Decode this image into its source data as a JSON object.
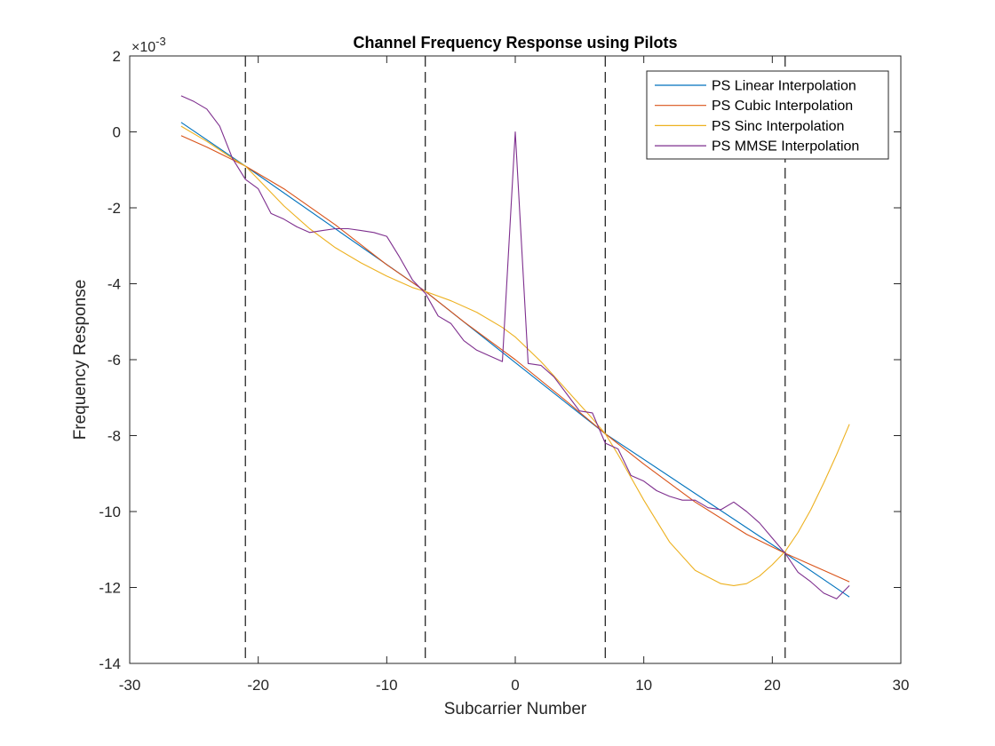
{
  "chart_data": {
    "type": "line",
    "title": "Channel Frequency Response using Pilots",
    "xlabel": "Subcarrier Number",
    "ylabel": "Frequency Response",
    "y_exponent_label": "×10",
    "y_exponent_power": "-3",
    "xlim": [
      -30,
      30
    ],
    "ylim": [
      -14,
      2
    ],
    "xticks": [
      -30,
      -20,
      -10,
      0,
      10,
      20,
      30
    ],
    "yticks": [
      -14,
      -12,
      -10,
      -8,
      -6,
      -4,
      -2,
      0,
      2
    ],
    "xtick_labels": [
      "-30",
      "-20",
      "-10",
      "0",
      "10",
      "20",
      "30"
    ],
    "ytick_labels": [
      "-14",
      "-12",
      "-10",
      "-8",
      "-6",
      "-4",
      "-2",
      "0",
      "2"
    ],
    "grid": false,
    "legend_position": "top-right",
    "pilot_lines": [
      -21,
      -7,
      7,
      21
    ],
    "series": [
      {
        "name": "PS Linear Interpolation",
        "color": "#0072BD",
        "x": [
          -26,
          -21,
          -7,
          7,
          21,
          26
        ],
        "y": [
          0.25,
          -0.9,
          -4.2,
          -7.95,
          -11.1,
          -12.25
        ]
      },
      {
        "name": "PS Cubic Interpolation",
        "color": "#D95319",
        "x": [
          -26,
          -24,
          -21,
          -18,
          -14,
          -10,
          -7,
          -4,
          0,
          4,
          7,
          10,
          14,
          18,
          21,
          24,
          26
        ],
        "y": [
          -0.1,
          -0.4,
          -0.9,
          -1.5,
          -2.45,
          -3.5,
          -4.2,
          -5.0,
          -6.0,
          -7.1,
          -7.95,
          -8.75,
          -9.75,
          -10.6,
          -11.1,
          -11.55,
          -11.85
        ]
      },
      {
        "name": "PS Sinc Interpolation",
        "color": "#EDB120",
        "x": [
          -26,
          -24,
          -22,
          -21,
          -20,
          -18,
          -16,
          -14,
          -12,
          -10,
          -8,
          -7,
          -5,
          -3,
          -1,
          0,
          2,
          4,
          6,
          7,
          8,
          10,
          12,
          14,
          16,
          17,
          18,
          19,
          20,
          21,
          22,
          23,
          24,
          25,
          26
        ],
        "y": [
          0.15,
          -0.25,
          -0.7,
          -0.9,
          -1.25,
          -1.95,
          -2.55,
          -3.05,
          -3.45,
          -3.8,
          -4.1,
          -4.2,
          -4.45,
          -4.75,
          -5.15,
          -5.4,
          -6.05,
          -6.8,
          -7.55,
          -7.95,
          -8.5,
          -9.7,
          -10.8,
          -11.55,
          -11.9,
          -11.95,
          -11.9,
          -11.7,
          -11.4,
          -11.05,
          -10.55,
          -9.95,
          -9.25,
          -8.5,
          -7.7
        ]
      },
      {
        "name": "PS MMSE Interpolation",
        "color": "#7E2F8E",
        "x": [
          -26,
          -25,
          -24,
          -23,
          -22,
          -21,
          -20,
          -19,
          -18,
          -17,
          -16,
          -15,
          -14,
          -13,
          -12,
          -11,
          -10,
          -9,
          -8,
          -7,
          -6,
          -5,
          -4,
          -3,
          -2,
          -1,
          0,
          1,
          2,
          3,
          4,
          5,
          6,
          7,
          8,
          9,
          10,
          11,
          12,
          13,
          14,
          15,
          16,
          17,
          18,
          19,
          20,
          21,
          22,
          23,
          24,
          25,
          26
        ],
        "y": [
          0.95,
          0.8,
          0.6,
          0.15,
          -0.7,
          -1.25,
          -1.5,
          -2.15,
          -2.3,
          -2.5,
          -2.65,
          -2.6,
          -2.55,
          -2.55,
          -2.6,
          -2.65,
          -2.75,
          -3.3,
          -3.9,
          -4.25,
          -4.85,
          -5.05,
          -5.5,
          -5.75,
          -5.9,
          -6.05,
          0.0,
          -6.1,
          -6.15,
          -6.45,
          -6.9,
          -7.35,
          -7.4,
          -8.2,
          -8.35,
          -9.05,
          -9.2,
          -9.45,
          -9.6,
          -9.7,
          -9.7,
          -9.9,
          -9.95,
          -9.75,
          -10.0,
          -10.3,
          -10.7,
          -11.1,
          -11.6,
          -11.85,
          -12.15,
          -12.3,
          -11.95
        ]
      }
    ]
  }
}
